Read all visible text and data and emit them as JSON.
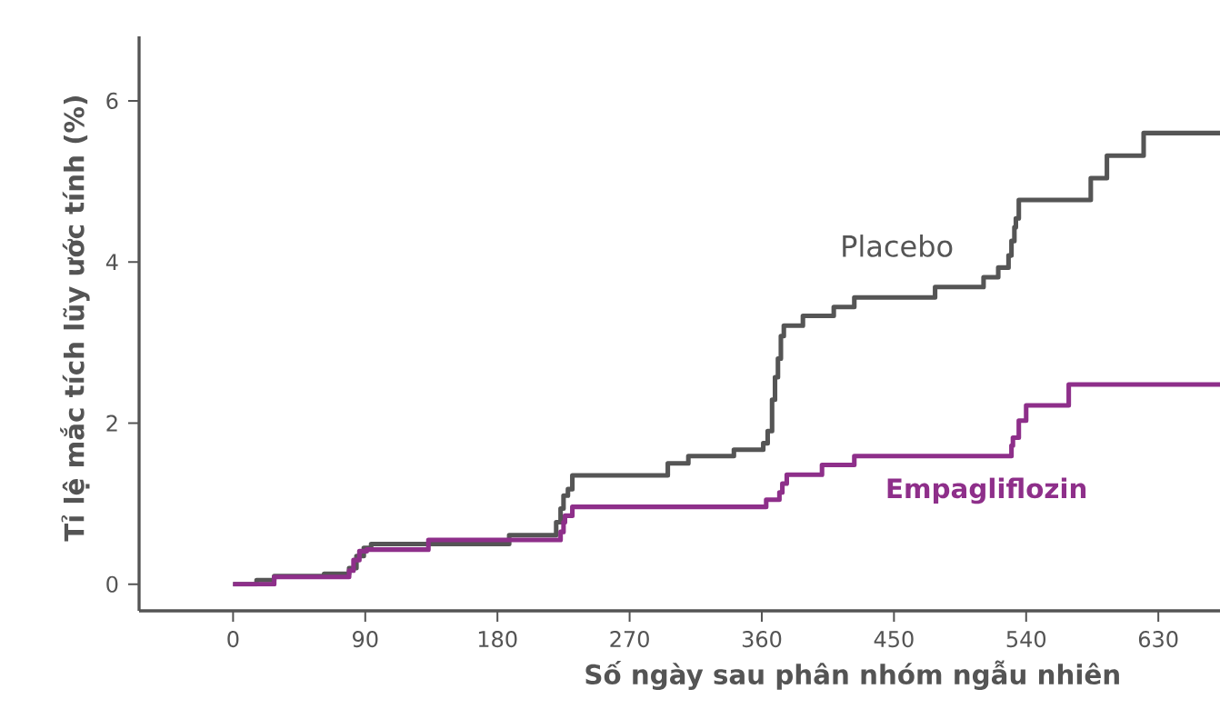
{
  "chart_data": {
    "type": "step",
    "xlabel": "Số ngày sau phân nhóm ngẫu nhiên",
    "ylabel": "Tỉ lệ mắc tích lũy ước tính (%)",
    "xlim": [
      -64,
      672
    ],
    "ylim": [
      -0.33,
      6.8
    ],
    "xticks": [
      0,
      90,
      180,
      270,
      360,
      450,
      540,
      630
    ],
    "yticks": [
      0,
      2,
      4,
      6
    ],
    "grid": false,
    "marker": "none",
    "line_style": "solid",
    "series": [
      {
        "name": "Placebo",
        "color": "#555555",
        "x": [
          0,
          16,
          28,
          62,
          79,
          84,
          89,
          94,
          188,
          220,
          223,
          225,
          228,
          231,
          296,
          310,
          341,
          361,
          364,
          367,
          369,
          371,
          373,
          375,
          388,
          409,
          423,
          478,
          511,
          521,
          528,
          530,
          532,
          533,
          535,
          584,
          595,
          620,
          672
        ],
        "values": [
          0,
          0.05,
          0.1,
          0.13,
          0.2,
          0.35,
          0.45,
          0.5,
          0.61,
          0.77,
          0.94,
          1.1,
          1.18,
          1.35,
          1.5,
          1.59,
          1.67,
          1.75,
          1.9,
          2.29,
          2.57,
          2.8,
          3.08,
          3.21,
          3.33,
          3.44,
          3.56,
          3.69,
          3.81,
          3.93,
          4.08,
          4.26,
          4.43,
          4.54,
          4.77,
          5.04,
          5.32,
          5.6,
          5.6
        ]
      },
      {
        "name": "Empagliflozin",
        "color": "#8e2f8a",
        "x": [
          0,
          28,
          79,
          82,
          86,
          91,
          133,
          223,
          225,
          226,
          231,
          363,
          372,
          374,
          377,
          401,
          423,
          530,
          531,
          535,
          540,
          569,
          672
        ],
        "values": [
          0,
          0.09,
          0.17,
          0.3,
          0.41,
          0.43,
          0.55,
          0.65,
          0.77,
          0.85,
          0.96,
          1.05,
          1.14,
          1.25,
          1.36,
          1.48,
          1.59,
          1.72,
          1.82,
          2.03,
          2.22,
          2.48,
          2.48
        ]
      }
    ]
  }
}
